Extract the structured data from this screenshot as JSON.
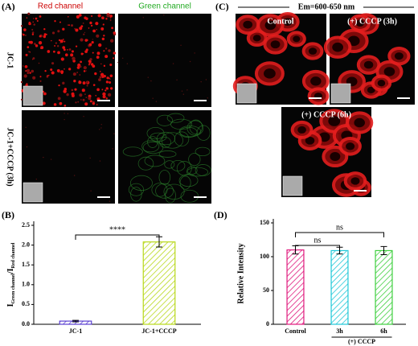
{
  "panels": {
    "A": {
      "label": "(A)",
      "columns": [
        "Red channel",
        "Green channel"
      ],
      "rows": [
        "JC-1",
        "JC-1+CCCP (3h)"
      ]
    },
    "C": {
      "label": "(C)",
      "header": "Em=600-650 nm",
      "images": [
        "Control",
        "(+) CCCP (3h)",
        "(+) CCCP (6h)"
      ]
    }
  },
  "chart_data": [
    {
      "type": "bar",
      "panel": "(B)",
      "ylabel": [
        "I",
        "Green channel",
        "/I",
        "Red channel"
      ],
      "categories": [
        "JC-1",
        "JC-1+CCCP"
      ],
      "values": [
        0.08,
        2.08
      ],
      "errors": [
        0.02,
        0.13
      ],
      "colors": [
        "#5a3fd0",
        "#b8d81a"
      ],
      "ylim": [
        0,
        2.5
      ],
      "yticks": [
        {
          "value": 0,
          "label": "0.0"
        },
        0.5,
        {
          "value": 1,
          "label": "1.0"
        },
        1.5,
        {
          "value": 2,
          "label": "2.0"
        },
        2.5
      ],
      "annotations": [
        "****"
      ]
    },
    {
      "type": "bar",
      "panel": "(D)",
      "ylabel": "Relative Intensity",
      "categories": [
        "Control",
        "3h",
        "6h"
      ],
      "values": [
        110,
        109,
        109
      ],
      "errors": [
        6,
        5,
        6
      ],
      "colors": [
        "#e0197d",
        "#20c8d8",
        "#3ecf3e"
      ],
      "ylim": [
        0,
        150
      ],
      "yticks": [
        0,
        50,
        100,
        150
      ],
      "annotations": [
        "ns",
        "ns"
      ],
      "group_label": "(+) CCCP"
    }
  ]
}
